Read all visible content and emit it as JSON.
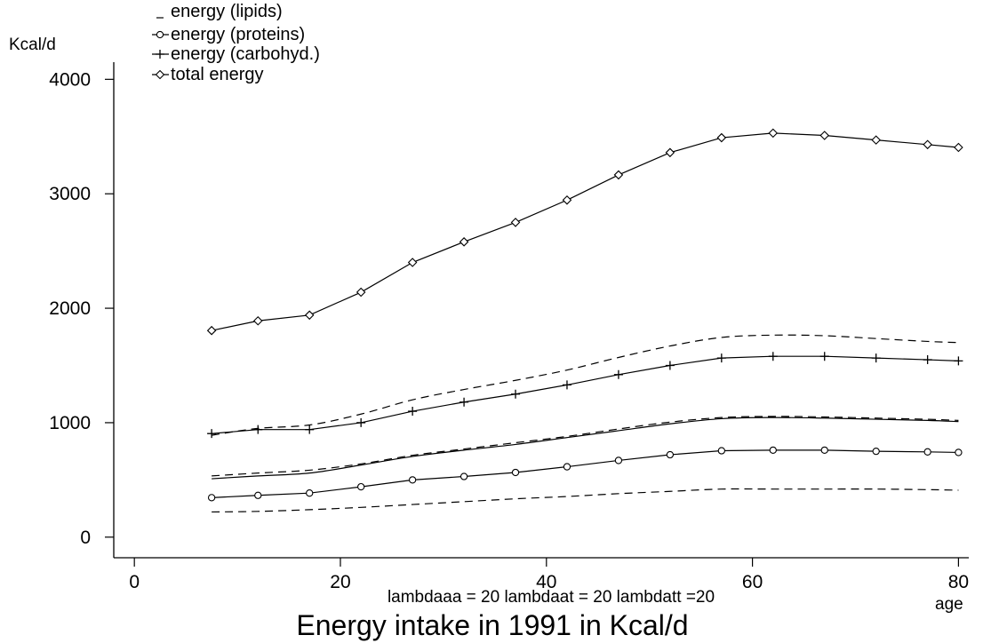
{
  "chart_data": {
    "type": "line",
    "title": "Energy intake in 1991 in Kcal/d",
    "subtitle": "lambdaaa = 20 lambdaat = 20 lambdatt =20",
    "xlabel": "age",
    "ylabel": "Kcal/d",
    "xlim": [
      -2,
      81
    ],
    "ylim": [
      -180,
      4150
    ],
    "x_ticks": [
      0,
      20,
      40,
      60,
      80
    ],
    "y_ticks": [
      0,
      1000,
      2000,
      3000,
      4000
    ],
    "x_tick_labels": [
      "0",
      "20",
      "40",
      "60",
      "80"
    ],
    "y_tick_labels": [
      "0",
      "1000",
      "2000",
      "3000",
      "4000"
    ],
    "grid": false,
    "legend_position": "top-left",
    "x": [
      7.5,
      12,
      17,
      22,
      27,
      32,
      37,
      42,
      47,
      52,
      57,
      62,
      67,
      72,
      77,
      80
    ],
    "series": [
      {
        "name": "total energy",
        "marker": "diamond",
        "style": "solid",
        "values": [
          1805,
          1890,
          1940,
          2140,
          2400,
          2580,
          2750,
          2945,
          3165,
          3360,
          3490,
          3530,
          3510,
          3470,
          3430,
          3405
        ]
      },
      {
        "name": "energy (carbohyd.)",
        "marker": "plus",
        "style": "solid",
        "values": [
          905,
          940,
          940,
          1000,
          1100,
          1180,
          1250,
          1330,
          1420,
          1500,
          1565,
          1580,
          1580,
          1565,
          1550,
          1540
        ]
      },
      {
        "name": "energy (proteins)",
        "marker": "circle",
        "style": "solid",
        "values": [
          345,
          365,
          385,
          440,
          500,
          530,
          565,
          615,
          670,
          720,
          755,
          760,
          760,
          750,
          745,
          740
        ]
      },
      {
        "name": "energy (lipids)",
        "marker": "none",
        "style": "dashed",
        "values": [
          220,
          225,
          240,
          260,
          285,
          310,
          335,
          355,
          380,
          400,
          420,
          420,
          420,
          420,
          415,
          410
        ]
      }
    ],
    "extra_curves": [
      {
        "style": "dashed",
        "values": [
          890,
          950,
          980,
          1075,
          1200,
          1290,
          1370,
          1460,
          1570,
          1670,
          1745,
          1765,
          1760,
          1735,
          1710,
          1700
        ]
      },
      {
        "style": "solid",
        "values": [
          510,
          535,
          560,
          630,
          705,
          760,
          810,
          870,
          930,
          990,
          1035,
          1045,
          1040,
          1030,
          1020,
          1010
        ]
      },
      {
        "style": "dashed",
        "values": [
          535,
          560,
          585,
          640,
          715,
          770,
          825,
          880,
          945,
          1005,
          1045,
          1055,
          1050,
          1040,
          1030,
          1020
        ]
      }
    ]
  }
}
